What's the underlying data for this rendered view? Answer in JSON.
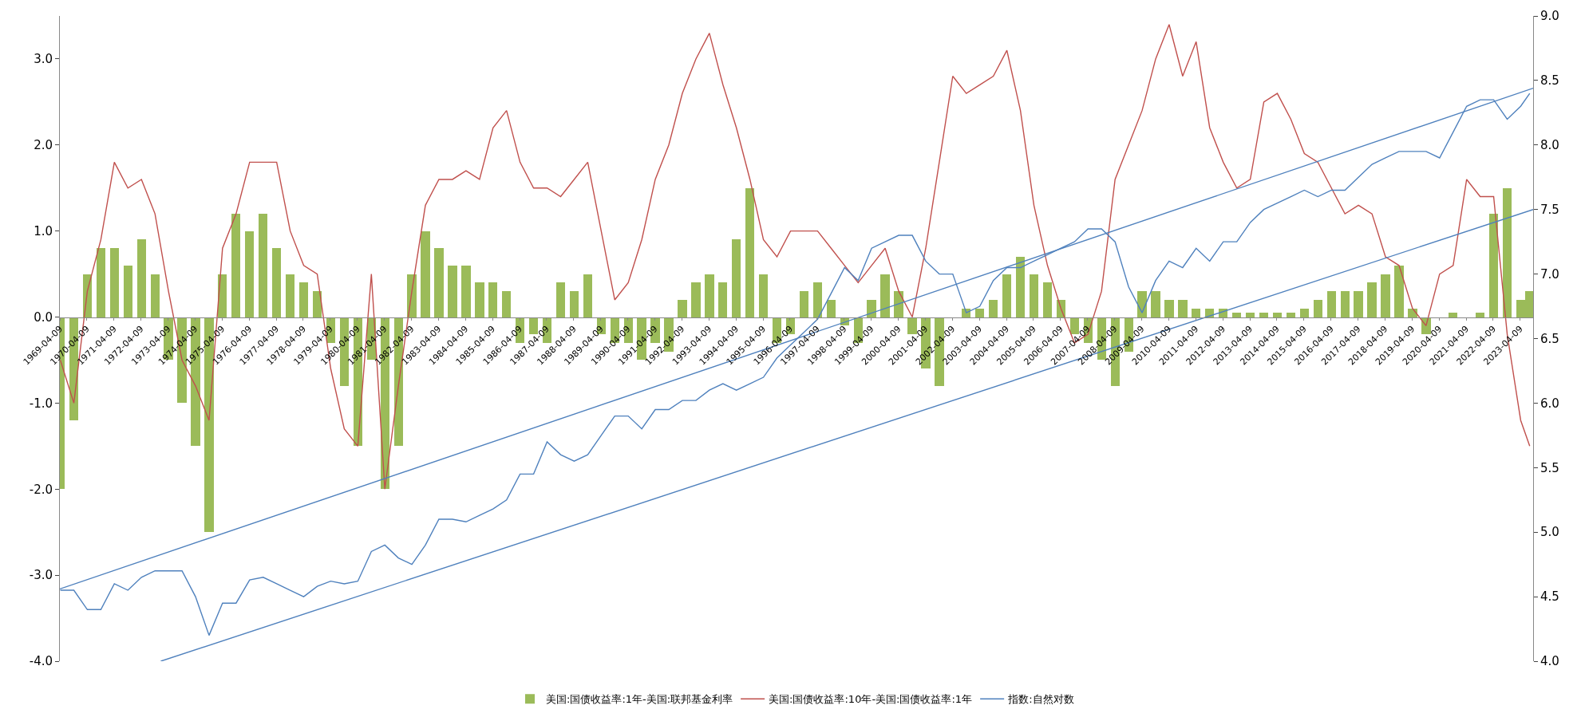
{
  "chart_data": {
    "type": "bar",
    "legend": "bottom",
    "marker": "none",
    "line_style": "solid",
    "x": [
      "1969-04-15",
      "1969-10-15",
      "1970-04-15",
      "1970-10-15",
      "1971-04-15",
      "1971-10-15",
      "1972-04-15",
      "1972-10-15",
      "1973-04-15",
      "1973-10-15",
      "1974-04-15",
      "1974-10-15",
      "1975-04-15",
      "1975-10-15",
      "1976-04-15",
      "1976-10-15",
      "1977-04-15",
      "1977-10-15",
      "1978-04-15",
      "1978-10-15",
      "1979-04-15",
      "1979-10-15",
      "1980-04-15",
      "1980-10-15",
      "1981-04-15",
      "1981-10-15",
      "1982-04-15",
      "1982-10-15",
      "1983-04-15",
      "1983-10-15",
      "1984-04-15",
      "1984-10-15",
      "1985-04-15",
      "1985-10-15",
      "1986-04-15",
      "1986-10-15",
      "1987-04-15",
      "1987-10-15",
      "1988-04-15",
      "1988-10-15",
      "1989-04-15",
      "1989-10-15",
      "1990-04-15",
      "1990-10-15",
      "1991-04-15",
      "1991-10-15",
      "1992-04-15",
      "1992-10-15",
      "1993-04-15",
      "1993-10-15",
      "1994-04-15",
      "1994-10-15",
      "1995-04-15",
      "1995-10-15",
      "1996-04-15",
      "1996-10-15",
      "1997-04-15",
      "1997-10-15",
      "1998-04-15",
      "1998-10-15",
      "1999-04-15",
      "1999-10-15",
      "2000-04-15",
      "2000-10-15",
      "2001-04-15",
      "2001-10-15",
      "2002-04-15",
      "2002-10-15",
      "2003-04-15",
      "2003-10-15",
      "2004-04-15",
      "2004-10-15",
      "2005-04-15",
      "2005-10-15",
      "2006-04-15",
      "2006-10-15",
      "2007-04-15",
      "2007-10-15",
      "2008-04-15",
      "2008-10-15",
      "2009-04-15",
      "2009-10-15",
      "2010-04-15",
      "2010-10-15",
      "2011-04-15",
      "2011-10-15",
      "2012-04-15",
      "2012-10-15",
      "2013-04-15",
      "2013-10-15",
      "2014-04-15",
      "2014-10-15",
      "2015-04-15",
      "2015-10-15",
      "2016-04-15",
      "2016-10-15",
      "2017-04-15",
      "2017-10-15",
      "2018-04-15",
      "2018-10-15",
      "2019-04-15",
      "2019-10-15",
      "2020-04-15",
      "2020-10-15",
      "2021-04-15",
      "2021-10-15",
      "2022-04-15",
      "2022-10-15",
      "2023-04-15",
      "2023-08-15"
    ],
    "xlim": [
      "1969-04-09",
      "2023-09-30"
    ],
    "xticks": [
      "1969-04-09",
      "1970-04-09",
      "1971-04-09",
      "1972-04-09",
      "1973-04-09",
      "1974-04-09",
      "1975-04-09",
      "1976-04-09",
      "1977-04-09",
      "1978-04-09",
      "1979-04-09",
      "1980-04-09",
      "1981-04-09",
      "1982-04-09",
      "1983-04-09",
      "1984-04-09",
      "1985-04-09",
      "1986-04-09",
      "1987-04-09",
      "1988-04-09",
      "1989-04-09",
      "1990-04-09",
      "1991-04-09",
      "1992-04-09",
      "1993-04-09",
      "1994-04-09",
      "1995-04-09",
      "1996-04-09",
      "1997-04-09",
      "1998-04-09",
      "1999-04-09",
      "2000-04-09",
      "2001-04-09",
      "2002-04-09",
      "2003-04-09",
      "2004-04-09",
      "2005-04-09",
      "2006-04-09",
      "2007-04-09",
      "2008-04-09",
      "2009-04-09",
      "2010-04-09",
      "2011-04-09",
      "2012-04-09",
      "2013-04-09",
      "2014-04-09",
      "2015-04-09",
      "2016-04-09",
      "2017-04-09",
      "2018-04-09",
      "2019-04-09",
      "2020-04-09",
      "2021-04-09",
      "2022-04-09",
      "2023-04-09"
    ],
    "ylim": [
      -4,
      3.5
    ],
    "yticks": [
      {
        "value": -4,
        "label": "-4.0"
      },
      {
        "value": -3,
        "label": "-3.0"
      },
      {
        "value": -2,
        "label": "-2.0"
      },
      {
        "value": -1,
        "label": "-1.0"
      },
      {
        "value": 0,
        "label": "0.0"
      },
      {
        "value": 1,
        "label": "1.0"
      },
      {
        "value": 2,
        "label": "2.0"
      },
      {
        "value": 3,
        "label": "3.0"
      }
    ],
    "y2lim": [
      4,
      9
    ],
    "y2ticks": [
      {
        "value": 4,
        "label": "4.0"
      },
      {
        "value": 4.5,
        "label": "4.5"
      },
      {
        "value": 5,
        "label": "5.0"
      },
      {
        "value": 5.5,
        "label": "5.5"
      },
      {
        "value": 6,
        "label": "6.0"
      },
      {
        "value": 6.5,
        "label": "6.5"
      },
      {
        "value": 7,
        "label": "7.0"
      },
      {
        "value": 7.5,
        "label": "7.5"
      },
      {
        "value": 8,
        "label": "8.0"
      },
      {
        "value": 8.5,
        "label": "8.5"
      },
      {
        "value": 9,
        "label": "9.0"
      }
    ],
    "series": [
      {
        "name": "美国:国债收益率:1年-美国:联邦基金利率",
        "color": "#9bbb59",
        "values": [
          -2.0,
          -1.2,
          0.5,
          0.8,
          0.8,
          0.6,
          0.9,
          0.5,
          -0.5,
          -1.0,
          -1.5,
          -2.5,
          0.5,
          1.2,
          1.0,
          1.2,
          0.8,
          0.5,
          0.4,
          0.3,
          -0.3,
          -0.8,
          -1.5,
          -0.5,
          -2.0,
          -1.5,
          0.5,
          1.0,
          0.8,
          0.6,
          0.6,
          0.4,
          0.4,
          0.3,
          -0.3,
          -0.2,
          -0.3,
          0.4,
          0.3,
          0.5,
          -0.2,
          -0.3,
          -0.3,
          -0.5,
          -0.3,
          -0.4,
          0.2,
          0.4,
          0.5,
          0.4,
          0.9,
          1.5,
          0.5,
          -0.3,
          -0.2,
          0.3,
          0.4,
          0.2,
          -0.1,
          -0.3,
          0.2,
          0.5,
          0.3,
          -0.2,
          -0.6,
          -0.8,
          0.0,
          0.1,
          0.1,
          0.2,
          0.5,
          0.7,
          0.5,
          0.4,
          0.2,
          -0.2,
          -0.3,
          -0.5,
          -0.8,
          -0.4,
          0.3,
          0.3,
          0.2,
          0.2,
          0.1,
          0.1,
          0.1,
          0.05,
          0.05,
          0.05,
          0.05,
          0.05,
          0.1,
          0.2,
          0.3,
          0.3,
          0.3,
          0.4,
          0.5,
          0.6,
          0.1,
          -0.2,
          0.0,
          0.05,
          0.0,
          0.05,
          1.2,
          1.5,
          0.2,
          0.3
        ]
      },
      {
        "name": "美国:国债收益率:10年-美国:国债收益率:1年",
        "type": "line",
        "color": "#c0504d",
        "values": [
          -0.5,
          -1.0,
          0.3,
          0.9,
          1.8,
          1.5,
          1.6,
          1.2,
          0.3,
          -0.5,
          -0.8,
          -1.2,
          0.8,
          1.2,
          1.8,
          1.8,
          1.8,
          1.0,
          0.6,
          0.5,
          -0.6,
          -1.3,
          -1.5,
          0.5,
          -2.0,
          -0.8,
          0.3,
          1.3,
          1.6,
          1.6,
          1.7,
          1.6,
          2.2,
          2.4,
          1.8,
          1.5,
          1.5,
          1.4,
          1.6,
          1.8,
          1.0,
          0.2,
          0.4,
          0.9,
          1.6,
          2.0,
          2.6,
          3.0,
          3.3,
          2.7,
          2.2,
          1.6,
          0.9,
          0.7,
          1.0,
          1.0,
          1.0,
          0.8,
          0.6,
          0.4,
          0.6,
          0.8,
          0.3,
          0.0,
          0.8,
          1.8,
          2.8,
          2.6,
          2.7,
          2.8,
          3.1,
          2.4,
          1.3,
          0.6,
          0.1,
          -0.3,
          -0.2,
          0.3,
          1.6,
          2.0,
          2.4,
          3.0,
          3.4,
          2.8,
          3.2,
          2.2,
          1.8,
          1.5,
          1.6,
          2.5,
          2.6,
          2.3,
          1.9,
          1.8,
          1.5,
          1.2,
          1.3,
          1.2,
          0.7,
          0.6,
          0.1,
          -0.1,
          0.5,
          0.6,
          1.6,
          1.4,
          1.4,
          -0.2,
          -1.2,
          -1.5
        ]
      },
      {
        "name": "指数:自然对数",
        "type": "line",
        "axis": "y2",
        "color": "#4f81bd",
        "values": [
          4.55,
          4.55,
          4.4,
          4.4,
          4.6,
          4.55,
          4.65,
          4.7,
          4.7,
          4.7,
          4.5,
          4.2,
          4.45,
          4.45,
          4.63,
          4.65,
          4.6,
          4.55,
          4.5,
          4.58,
          4.62,
          4.6,
          4.62,
          4.85,
          4.9,
          4.8,
          4.75,
          4.9,
          5.1,
          5.1,
          5.08,
          5.13,
          5.18,
          5.25,
          5.45,
          5.45,
          5.7,
          5.6,
          5.55,
          5.6,
          5.75,
          5.9,
          5.9,
          5.8,
          5.95,
          5.95,
          6.02,
          6.02,
          6.1,
          6.15,
          6.1,
          6.15,
          6.2,
          6.35,
          6.45,
          6.55,
          6.65,
          6.85,
          7.05,
          6.95,
          7.2,
          7.25,
          7.3,
          7.3,
          7.1,
          7.0,
          7.0,
          6.7,
          6.75,
          6.95,
          7.05,
          7.05,
          7.1,
          7.15,
          7.2,
          7.25,
          7.35,
          7.35,
          7.25,
          6.9,
          6.7,
          6.95,
          7.1,
          7.05,
          7.2,
          7.1,
          7.25,
          7.25,
          7.4,
          7.5,
          7.55,
          7.6,
          7.65,
          7.6,
          7.65,
          7.65,
          7.75,
          7.85,
          7.9,
          7.95,
          7.95,
          7.95,
          7.9,
          8.1,
          8.3,
          8.35,
          8.35,
          8.2,
          8.3,
          8.4
        ]
      },
      {
        "type": "line",
        "axis": "y2",
        "color": "#4f81bd",
        "x": [
          "1969-04-09",
          "2023-09-30"
        ],
        "values": [
          4.56,
          8.44
        ]
      },
      {
        "type": "line",
        "axis": "y2",
        "color": "#4f81bd",
        "x": [
          "1973-01-01",
          "2023-09-30"
        ],
        "values": [
          4.0,
          7.5
        ]
      }
    ]
  }
}
